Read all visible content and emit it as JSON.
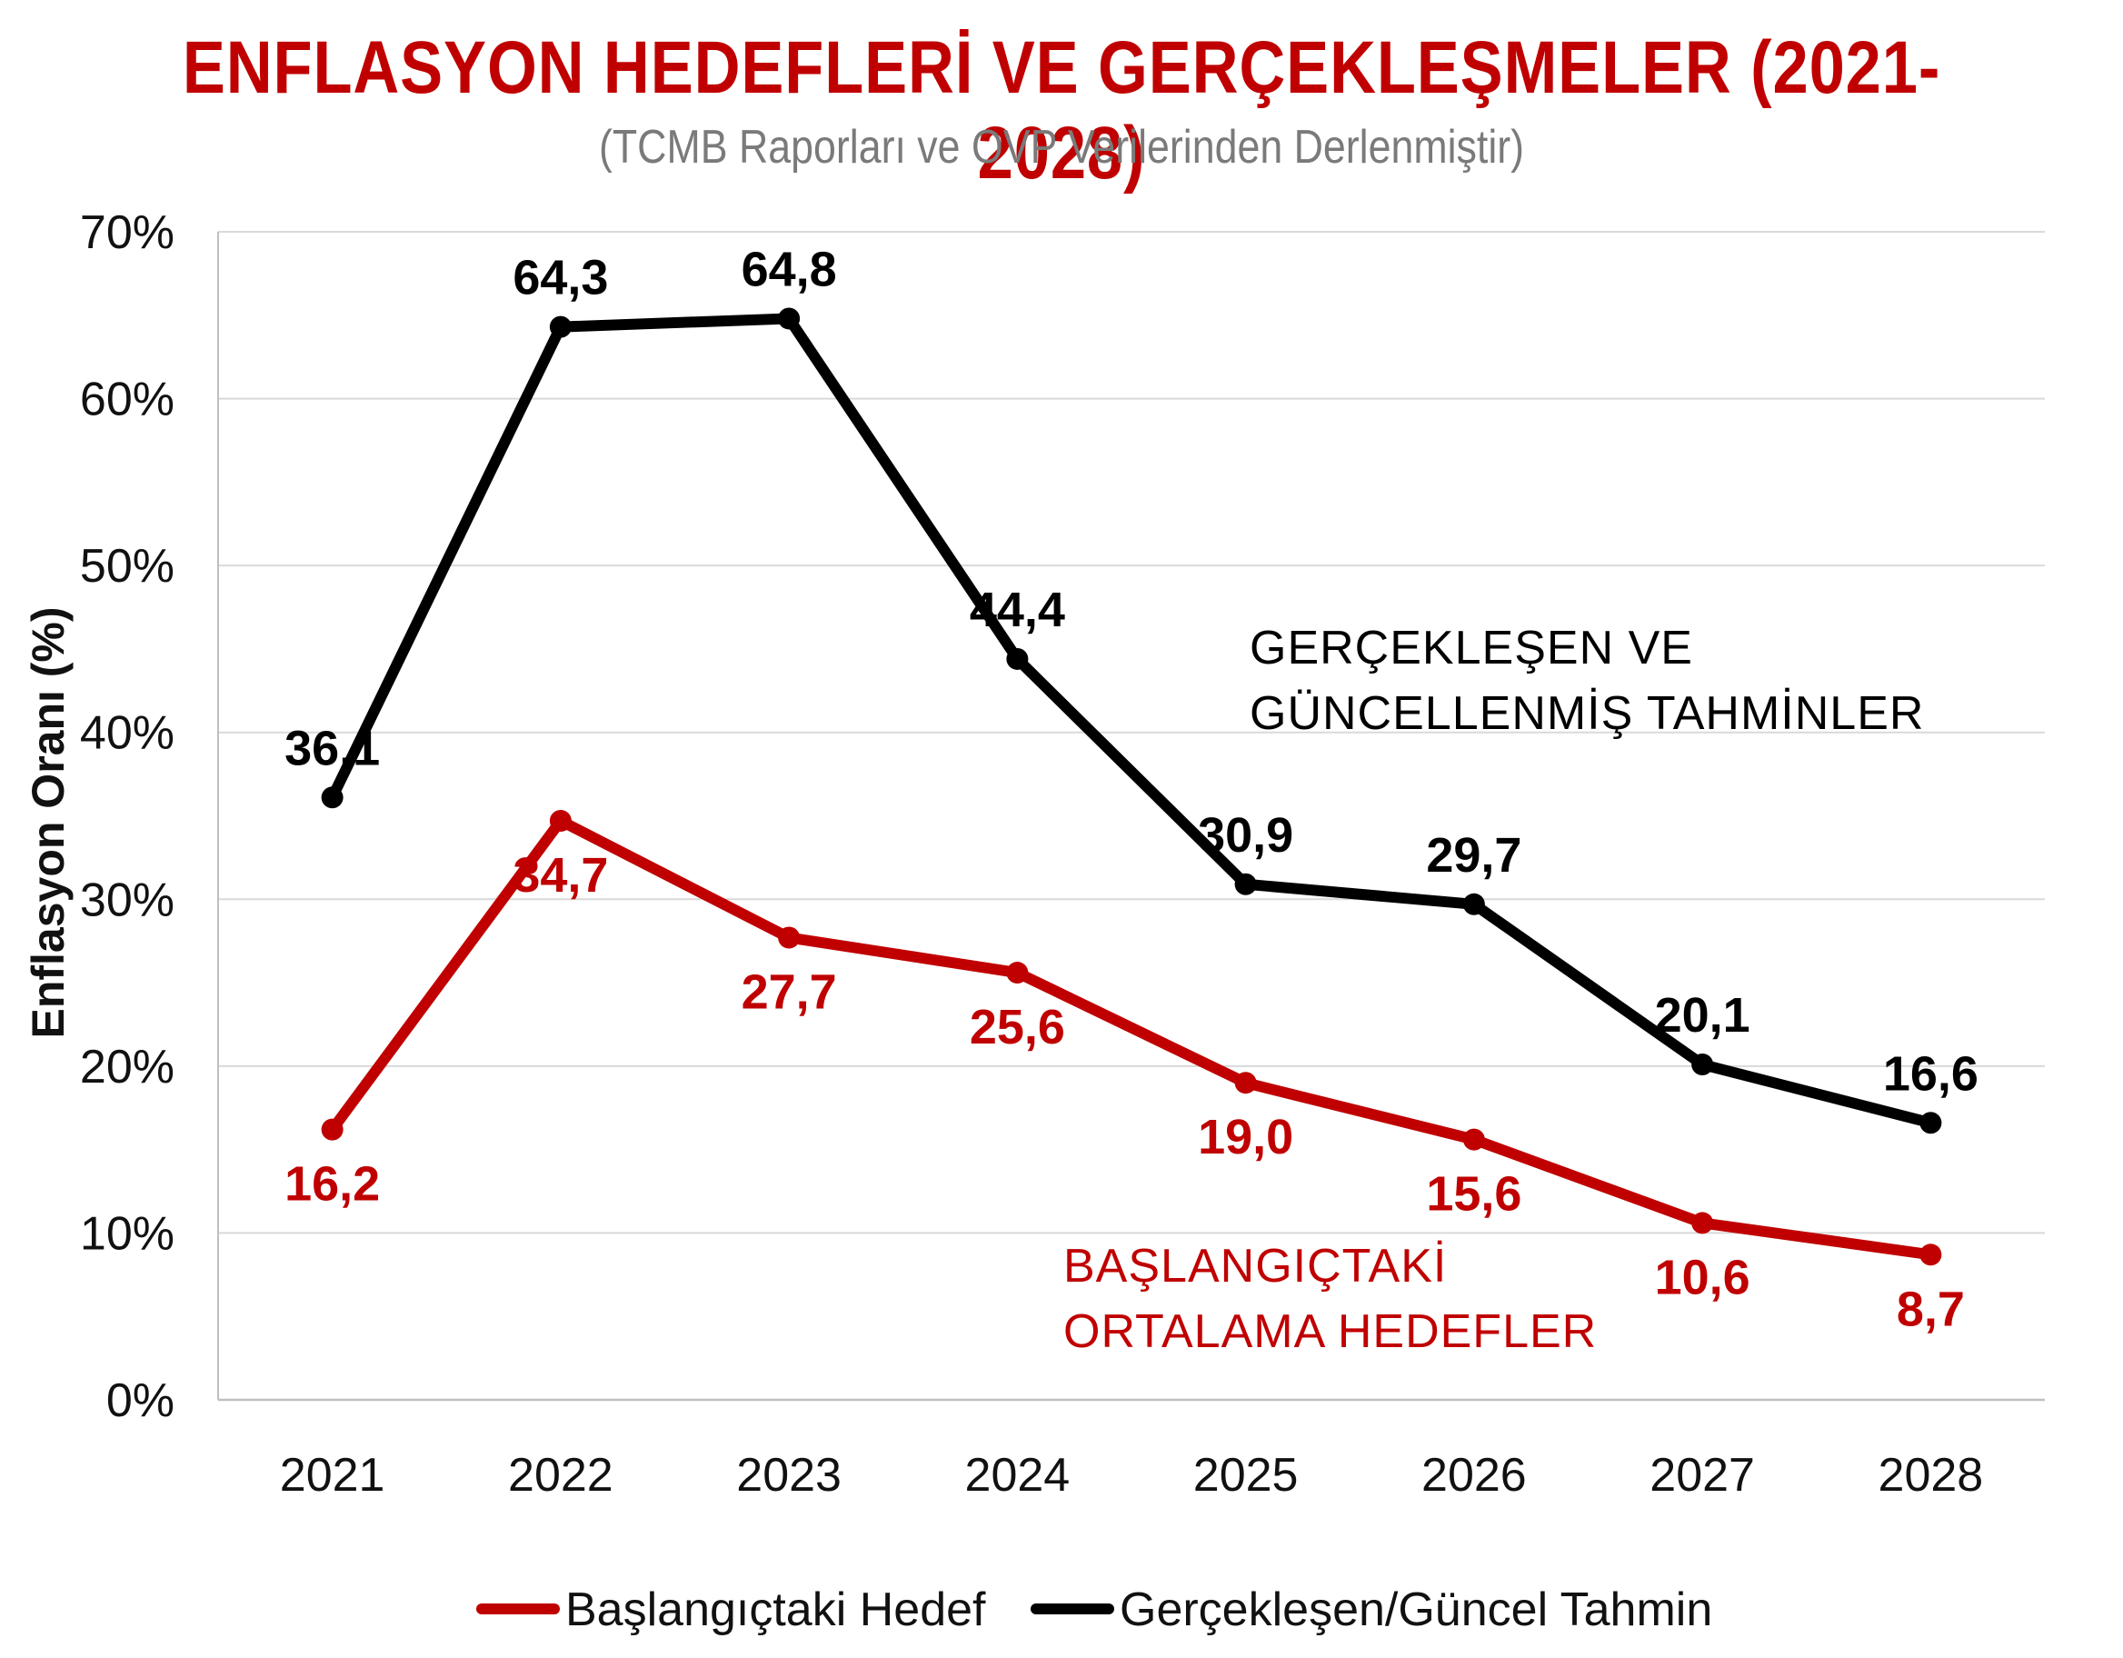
{
  "chart_data": {
    "type": "line",
    "title": "ENFLASYON HEDEFLERİ VE GERÇEKLEŞMELER (2021-2028)",
    "subtitle": "(TCMB Raporları ve OVP Verilerinden Derlenmiştir)",
    "xlabel": "",
    "ylabel": "Enflasyon Oranı (%)",
    "x": [
      "2021",
      "2022",
      "2023",
      "2024",
      "2025",
      "2026",
      "2027",
      "2028"
    ],
    "ylim": [
      0,
      70
    ],
    "yticks": [
      0,
      10,
      20,
      30,
      40,
      50,
      60,
      70
    ],
    "ytick_labels": [
      "0%",
      "10%",
      "20%",
      "30%",
      "40%",
      "50%",
      "60%",
      "70%"
    ],
    "grid": true,
    "legend_position": "bottom",
    "series": [
      {
        "name": "Başlangıçtaki Hedef",
        "color": "#c00000",
        "values": [
          16.2,
          34.7,
          27.7,
          25.6,
          19.0,
          15.6,
          10.6,
          8.7
        ],
        "labels": [
          "16,2",
          "34,7",
          "27,7",
          "25,6",
          "19,0",
          "15,6",
          "10,6",
          "8,7"
        ]
      },
      {
        "name": "Gerçekleşen/Güncel Tahmin",
        "color": "#000000",
        "values": [
          36.1,
          64.3,
          64.8,
          44.4,
          30.9,
          29.7,
          20.1,
          16.6
        ],
        "labels": [
          "36,1",
          "64,3",
          "64,8",
          "44,4",
          "30,9",
          "29,7",
          "20,1",
          "16,6"
        ]
      }
    ],
    "annotations": [
      {
        "lines": [
          "GERÇEKLEŞEN VE",
          "GÜNCELLENMİŞ TAHMİNLER"
        ],
        "color": "#000000"
      },
      {
        "lines": [
          "BAŞLANGIÇTAKİ",
          "ORTALAMA HEDEFLER"
        ],
        "color": "#c00000"
      }
    ]
  },
  "colors": {
    "title": "#c00000",
    "subtitle": "#7a7a7a",
    "grid": "#d9d9d9"
  }
}
